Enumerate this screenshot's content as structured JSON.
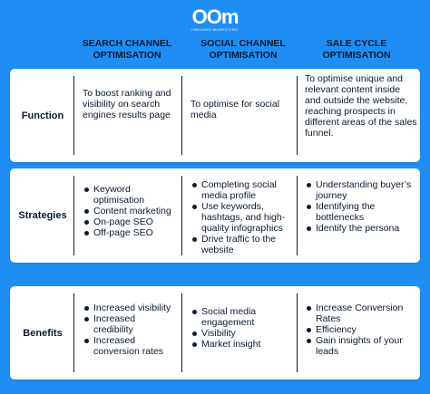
{
  "logo": {
    "mark": "OOm",
    "tagline": "INBOUND MARKETING"
  },
  "columns": [
    "SEARCH CHANNEL OPTIMISATION",
    "SOCIAL CHANNEL OPTIMISATION",
    "SALE CYCLE OPTIMISATION"
  ],
  "rows": [
    {
      "label": "Function",
      "search": "To boost ranking and visibility on search engines results page",
      "social": "To optimise for social media",
      "sale": "To optimise unique and relevant content inside and outside the website, reaching prospects in different areas of the sales funnel."
    },
    {
      "label": "Strategies",
      "search": [
        "Keyword optimisation",
        "Content marketing",
        "On-page SEO",
        "Off-page SEO"
      ],
      "social": [
        "Completing social media profile",
        "Use keywords, hashtags, and high-quality infographics",
        "Drive traffic to the website"
      ],
      "sale": [
        "Understanding buyer’s journey",
        "Identifying the bottlenecks",
        "Identify the persona"
      ]
    },
    {
      "label": "Benefits",
      "search": [
        "Increased visibility",
        "Increased credibility",
        "Increased conversion rates"
      ],
      "social": [
        "Social media engagement",
        "Visibility",
        "Market insight"
      ],
      "sale": [
        "Increase Conversion Rates",
        "Efficiency",
        "Gain insights of your leads"
      ]
    }
  ]
}
